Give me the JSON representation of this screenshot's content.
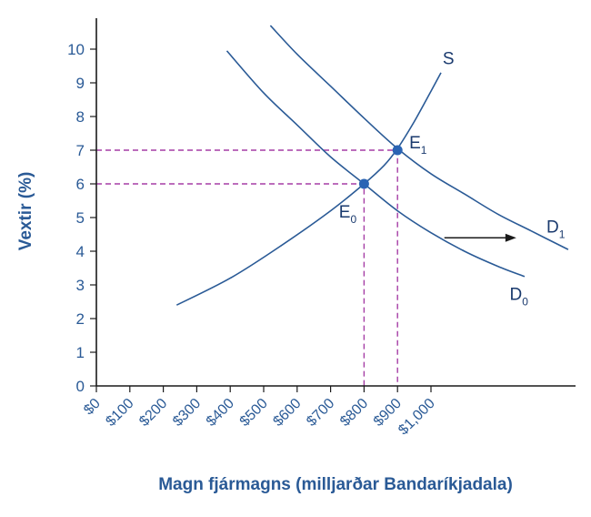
{
  "chart_data": {
    "type": "line",
    "xlabel": "Magn fjármagns (milljarðar Bandaríkjadala)",
    "ylabel": "Vextir (%)",
    "xlim": [
      0,
      1450
    ],
    "ylim": [
      0,
      11
    ],
    "x_ticks": [
      0,
      100,
      200,
      300,
      400,
      500,
      600,
      700,
      800,
      900,
      1000
    ],
    "x_tick_labels": [
      "$0",
      "$100",
      "$200",
      "$300",
      "$400",
      "$500",
      "$600",
      "$700",
      "$800",
      "$900",
      "$1,000"
    ],
    "y_ticks": [
      0,
      1,
      2,
      3,
      4,
      5,
      6,
      7,
      8,
      9,
      10
    ],
    "y_tick_labels": [
      "0",
      "1",
      "2",
      "3",
      "4",
      "5",
      "6",
      "7",
      "8",
      "9",
      "10"
    ],
    "series": [
      {
        "name": "S",
        "points": [
          [
            240,
            2.4
          ],
          [
            400,
            3.2
          ],
          [
            550,
            4.15
          ],
          [
            700,
            5.2
          ],
          [
            800,
            6.0
          ],
          [
            860,
            6.55
          ],
          [
            900,
            7.05
          ],
          [
            950,
            7.85
          ],
          [
            1000,
            8.75
          ],
          [
            1030,
            9.3
          ]
        ]
      },
      {
        "name": "D0",
        "points": [
          [
            390,
            9.95
          ],
          [
            500,
            8.7
          ],
          [
            600,
            7.75
          ],
          [
            700,
            6.8
          ],
          [
            800,
            6.0
          ],
          [
            900,
            5.2
          ],
          [
            1000,
            4.55
          ],
          [
            1100,
            4.0
          ],
          [
            1200,
            3.55
          ],
          [
            1280,
            3.25
          ]
        ]
      },
      {
        "name": "D1",
        "points": [
          [
            520,
            10.7
          ],
          [
            600,
            9.85
          ],
          [
            700,
            8.9
          ],
          [
            800,
            7.95
          ],
          [
            900,
            7.05
          ],
          [
            1000,
            6.3
          ],
          [
            1100,
            5.7
          ],
          [
            1200,
            5.1
          ],
          [
            1300,
            4.6
          ],
          [
            1410,
            4.05
          ]
        ]
      }
    ],
    "curve_labels": [
      {
        "series": "S",
        "main": "S",
        "sub": "",
        "at": [
          1035,
          9.55
        ]
      },
      {
        "series": "D1",
        "main": "D",
        "sub": "1",
        "at": [
          1345,
          4.55
        ]
      },
      {
        "series": "D0",
        "main": "D",
        "sub": "0",
        "at": [
          1235,
          2.55
        ]
      }
    ],
    "equilibria": [
      {
        "main": "E",
        "sub": "0",
        "x": 800,
        "y": 6,
        "label_at": [
          725,
          5.0
        ]
      },
      {
        "main": "E",
        "sub": "1",
        "x": 900,
        "y": 7,
        "label_at": [
          935,
          7.05
        ]
      }
    ],
    "shift_arrow": {
      "from": [
        1040,
        4.4
      ],
      "to": [
        1255,
        4.4
      ]
    },
    "grid": false,
    "colors": {
      "curve": "#2a5a96",
      "guide": "#a53da5",
      "point": "#2a64b4",
      "label": "#2a5a96"
    }
  }
}
